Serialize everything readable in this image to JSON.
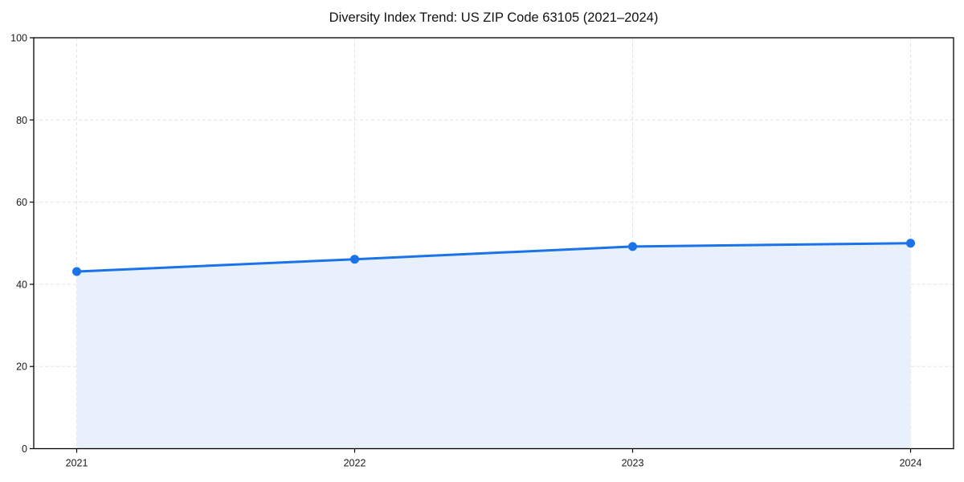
{
  "page": {
    "background": "#ffffff"
  },
  "chart_data": {
    "type": "line",
    "title": "Diversity Index Trend: US ZIP Code 63105 (2021–2024)",
    "series_name": "Diversity Index",
    "x": [
      "2021",
      "2022",
      "2023",
      "2024"
    ],
    "values": [
      43.1,
      46.1,
      49.2,
      50.0
    ],
    "xlabel": "",
    "ylabel": "",
    "ylim": [
      0,
      100
    ],
    "yticks": [
      0,
      20,
      40,
      60,
      80,
      100
    ],
    "grid": "dashed-both-axes",
    "legend": "none",
    "area_fill": true,
    "marker": "circle",
    "colors": {
      "line": "#1a73e8",
      "marker": "#1a73e8",
      "fill": "#e8f0fc",
      "grid": "#e3e3e3",
      "spine": "#000000",
      "tick_text": "#1a1a1a",
      "title_text": "#111111",
      "background": "#ffffff"
    }
  }
}
